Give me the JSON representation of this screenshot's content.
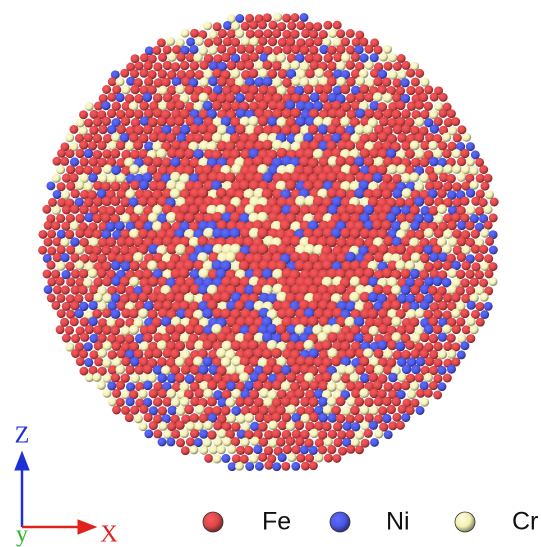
{
  "axes": {
    "z": {
      "label": "Z",
      "color": "#1f2fd6"
    },
    "y": {
      "label": "y",
      "color": "#2bb52b"
    },
    "x": {
      "label": "X",
      "color": "#e0221e"
    }
  },
  "legend": [
    {
      "label": "Fe",
      "color": "#d9474a"
    },
    {
      "label": "Ni",
      "color": "#4c57e2"
    },
    {
      "label": "Cr",
      "color": "#f3efb3"
    }
  ]
}
